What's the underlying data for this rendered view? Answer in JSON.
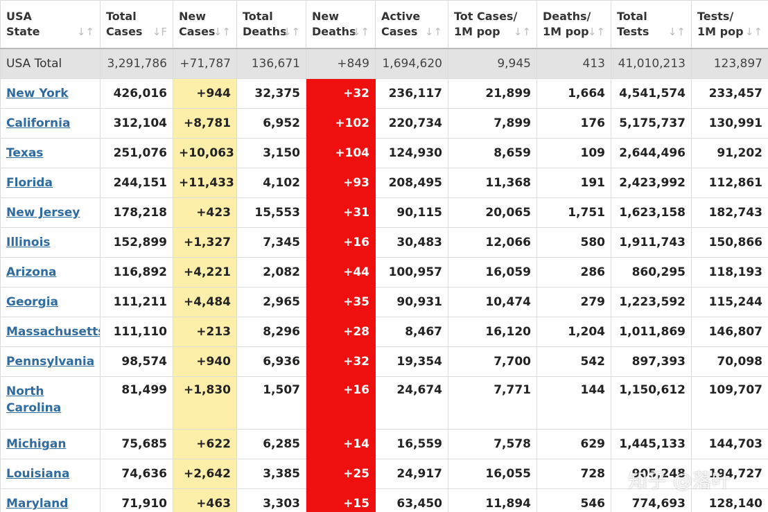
{
  "headers": [
    {
      "line1": "USA",
      "line2": "State"
    },
    {
      "line1": "Total",
      "line2": "Cases"
    },
    {
      "line1": "New",
      "line2": "Cases"
    },
    {
      "line1": "Total",
      "line2": "Deaths"
    },
    {
      "line1": "New",
      "line2": "Deaths"
    },
    {
      "line1": "Active",
      "line2": "Cases"
    },
    {
      "line1": "Tot Cases/",
      "line2": "1M pop"
    },
    {
      "line1": "Deaths/",
      "line2": "1M pop"
    },
    {
      "line1": "Total",
      "line2": "Tests"
    },
    {
      "line1": "Tests/",
      "line2": "1M pop"
    }
  ],
  "sort_glyph": "↓↑",
  "sort_glyph_active": "↓F",
  "total": {
    "name": "USA Total",
    "cells": [
      "3,291,786",
      "+71,787",
      "136,671",
      "+849",
      "1,694,620",
      "9,945",
      "413",
      "41,010,213",
      "123,897"
    ]
  },
  "rows": [
    {
      "name": "New York",
      "cells": [
        "426,016",
        "+944",
        "32,375",
        "+32",
        "236,117",
        "21,899",
        "1,664",
        "4,541,574",
        "233,457"
      ]
    },
    {
      "name": "California",
      "cells": [
        "312,104",
        "+8,781",
        "6,952",
        "+102",
        "220,734",
        "7,899",
        "176",
        "5,175,737",
        "130,991"
      ]
    },
    {
      "name": "Texas",
      "cells": [
        "251,076",
        "+10,063",
        "3,150",
        "+104",
        "124,930",
        "8,659",
        "109",
        "2,644,496",
        "91,202"
      ]
    },
    {
      "name": "Florida",
      "cells": [
        "244,151",
        "+11,433",
        "4,102",
        "+93",
        "208,495",
        "11,368",
        "191",
        "2,423,992",
        "112,861"
      ]
    },
    {
      "name": "New Jersey",
      "cells": [
        "178,218",
        "+423",
        "15,553",
        "+31",
        "90,115",
        "20,065",
        "1,751",
        "1,623,158",
        "182,743"
      ]
    },
    {
      "name": "Illinois",
      "cells": [
        "152,899",
        "+1,327",
        "7,345",
        "+16",
        "30,483",
        "12,066",
        "580",
        "1,911,743",
        "150,866"
      ]
    },
    {
      "name": "Arizona",
      "cells": [
        "116,892",
        "+4,221",
        "2,082",
        "+44",
        "100,957",
        "16,059",
        "286",
        "860,295",
        "118,193"
      ]
    },
    {
      "name": "Georgia",
      "cells": [
        "111,211",
        "+4,484",
        "2,965",
        "+35",
        "90,931",
        "10,474",
        "279",
        "1,223,592",
        "115,244"
      ]
    },
    {
      "name": "Massachusetts",
      "cells": [
        "111,110",
        "+213",
        "8,296",
        "+28",
        "8,467",
        "16,120",
        "1,204",
        "1,011,869",
        "146,807"
      ]
    },
    {
      "name": "Pennsylvania",
      "cells": [
        "98,574",
        "+940",
        "6,936",
        "+32",
        "19,354",
        "7,700",
        "542",
        "897,393",
        "70,098"
      ]
    },
    {
      "name": "North Carolina",
      "cells": [
        "81,499",
        "+1,830",
        "1,507",
        "+16",
        "24,674",
        "7,771",
        "144",
        "1,150,612",
        "109,707"
      ]
    },
    {
      "name": "Michigan",
      "cells": [
        "75,685",
        "+622",
        "6,285",
        "+14",
        "16,559",
        "7,578",
        "629",
        "1,445,133",
        "144,703"
      ]
    },
    {
      "name": "Louisiana",
      "cells": [
        "74,636",
        "+2,642",
        "3,385",
        "+25",
        "24,917",
        "16,055",
        "728",
        "905,248",
        "194,727"
      ]
    },
    {
      "name": "Maryland",
      "cells": [
        "71,910",
        "+463",
        "3,303",
        "+15",
        "63,450",
        "11,894",
        "546",
        "774,693",
        "128,140"
      ]
    }
  ],
  "watermark": "知乎 @落叶",
  "colors": {
    "new_cases_bg": "#fdeeaa",
    "new_deaths_bg": "#f00f0f",
    "link": "#2f6b9e",
    "total_bg": "#e3e3e3"
  }
}
